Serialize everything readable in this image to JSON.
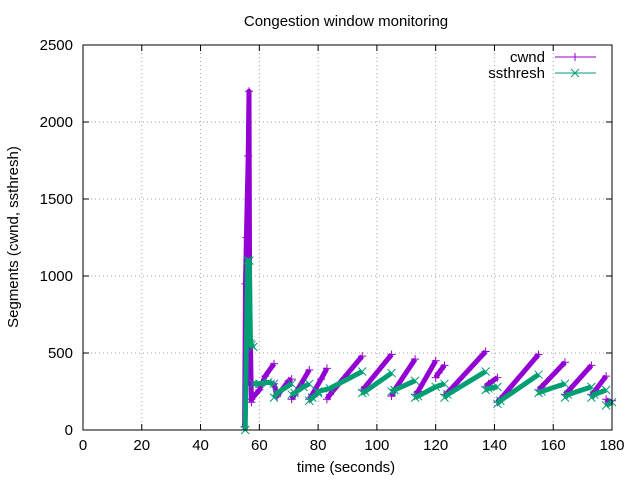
{
  "chart_data": {
    "type": "line",
    "title": "Congestion window monitoring",
    "xlabel": "time (seconds)",
    "ylabel": "Segments (cwnd, ssthresh)",
    "xlim": [
      0,
      180
    ],
    "ylim": [
      0,
      2500
    ],
    "xticks": [
      0,
      20,
      40,
      60,
      80,
      100,
      120,
      140,
      160,
      180
    ],
    "yticks": [
      0,
      500,
      1000,
      1500,
      2000,
      2500
    ],
    "grid": true,
    "legend_position": "top-right",
    "series": [
      {
        "name": "cwnd",
        "color": "#9400d3",
        "marker": "plus",
        "segments": [
          {
            "x": [
              55,
              55.3,
              55.6,
              56.2,
              56.5,
              56.8,
              57.0,
              57.3
            ],
            "y": [
              20,
              950,
              1250,
              1780,
              2200,
              300,
              540,
              180
            ]
          },
          {
            "x": [
              57.3,
              60,
              62,
              65
            ],
            "y": [
              200,
              260,
              350,
              430
            ]
          },
          {
            "x": [
              65,
              66,
              70,
              71
            ],
            "y": [
              300,
              220,
              320,
              330
            ]
          },
          {
            "x": [
              71,
              72,
              77
            ],
            "y": [
              200,
              230,
              390
            ]
          },
          {
            "x": [
              77,
              78,
              81,
              83
            ],
            "y": [
              200,
              230,
              330,
              400
            ]
          },
          {
            "x": [
              83,
              84,
              95
            ],
            "y": [
              200,
              230,
              480
            ]
          },
          {
            "x": [
              95,
              96,
              105
            ],
            "y": [
              260,
              280,
              490
            ]
          },
          {
            "x": [
              105,
              106,
              113
            ],
            "y": [
              220,
              260,
              460
            ]
          },
          {
            "x": [
              113,
              114,
              120
            ],
            "y": [
              230,
              250,
              450
            ]
          },
          {
            "x": [
              120,
              121,
              123
            ],
            "y": [
              340,
              370,
              420
            ]
          },
          {
            "x": [
              123,
              124,
              137
            ],
            "y": [
              230,
              240,
              510
            ]
          },
          {
            "x": [
              137,
              138,
              141
            ],
            "y": [
              280,
              300,
              340
            ]
          },
          {
            "x": [
              141,
              142,
              155
            ],
            "y": [
              180,
              200,
              490
            ]
          },
          {
            "x": [
              155,
              156,
              164
            ],
            "y": [
              260,
              280,
              440
            ]
          },
          {
            "x": [
              164,
              165,
              173
            ],
            "y": [
              230,
              250,
              420
            ]
          },
          {
            "x": [
              173,
              174,
              178
            ],
            "y": [
              230,
              250,
              350
            ]
          },
          {
            "x": [
              178,
              179,
              180
            ],
            "y": [
              200,
              180,
              190
            ]
          }
        ]
      },
      {
        "name": "ssthresh",
        "color": "#009e73",
        "marker": "cross",
        "segments": [
          {
            "x": [
              55.2,
              56.0,
              56.6,
              57.0,
              57.3,
              58.0
            ],
            "y": [
              0,
              1100,
              1100,
              560,
              550,
              540
            ]
          },
          {
            "x": [
              58,
              60,
              63,
              65
            ],
            "y": [
              300,
              300,
              310,
              300
            ]
          },
          {
            "x": [
              65,
              66,
              71
            ],
            "y": [
              210,
              240,
              300
            ]
          },
          {
            "x": [
              71,
              72,
              75,
              77
            ],
            "y": [
              230,
              240,
              280,
              300
            ]
          },
          {
            "x": [
              77,
              78,
              80
            ],
            "y": [
              190,
              210,
              240
            ]
          },
          {
            "x": [
              80,
              84,
              95
            ],
            "y": [
              250,
              270,
              380
            ]
          },
          {
            "x": [
              95,
              96,
              105
            ],
            "y": [
              240,
              250,
              370
            ]
          },
          {
            "x": [
              105,
              106,
              113
            ],
            "y": [
              250,
              260,
              320
            ]
          },
          {
            "x": [
              113,
              114,
              120,
              123
            ],
            "y": [
              210,
              220,
              280,
              300
            ]
          },
          {
            "x": [
              123,
              124,
              137
            ],
            "y": [
              210,
              230,
              380
            ]
          },
          {
            "x": [
              137,
              138,
              141
            ],
            "y": [
              260,
              270,
              280
            ]
          },
          {
            "x": [
              141,
              142,
              155
            ],
            "y": [
              170,
              190,
              360
            ]
          },
          {
            "x": [
              155,
              156,
              164
            ],
            "y": [
              240,
              250,
              300
            ]
          },
          {
            "x": [
              164,
              165,
              173
            ],
            "y": [
              210,
              230,
              280
            ]
          },
          {
            "x": [
              173,
              174,
              178
            ],
            "y": [
              210,
              230,
              260
            ]
          },
          {
            "x": [
              178,
              180
            ],
            "y": [
              160,
              180
            ]
          }
        ]
      }
    ]
  }
}
